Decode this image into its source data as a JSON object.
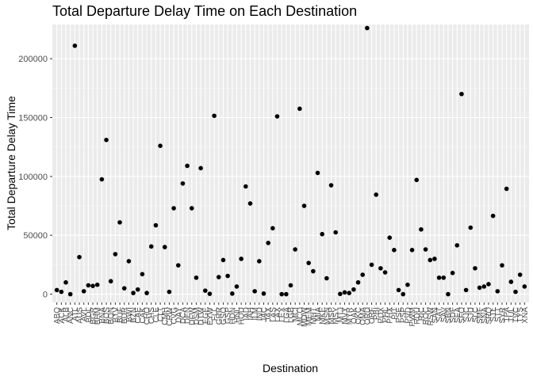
{
  "chart_data": {
    "type": "scatter",
    "title": "Total Departure Delay Time on Each Destination",
    "xlabel": "Destination",
    "ylabel": "Total Departure Delay Time",
    "ylim": [
      -7000,
      229000
    ],
    "yticks": [
      0,
      50000,
      100000,
      150000,
      200000
    ],
    "ytick_labels": [
      "0",
      "50000",
      "100000",
      "150000",
      "200000"
    ],
    "grid": true,
    "point_color": "#000000",
    "panel_color": "#ebebeb",
    "categories": [
      "ABQ",
      "ACK",
      "ALB",
      "ANC",
      "ATL",
      "AUS",
      "AVL",
      "BDL",
      "BGR",
      "BHM",
      "BNA",
      "BOS",
      "BQN",
      "BTV",
      "BUF",
      "BUR",
      "BWI",
      "BZN",
      "CAE",
      "CAK",
      "CHO",
      "CHS",
      "CLE",
      "CLT",
      "CMH",
      "CRW",
      "CVG",
      "DAY",
      "DCA",
      "DEN",
      "DFW",
      "DSM",
      "DTW",
      "EGE",
      "EYW",
      "FLL",
      "GRR",
      "GSO",
      "GSP",
      "HDN",
      "HNL",
      "HOU",
      "IAD",
      "IAH",
      "ILM",
      "IND",
      "JAC",
      "JAX",
      "LAS",
      "LAX",
      "LEX",
      "LGA",
      "LGB",
      "MCI",
      "MCO",
      "MDW",
      "MEM",
      "MHT",
      "MIA",
      "MKE",
      "MSN",
      "MSP",
      "MSY",
      "MTJ",
      "MVY",
      "MYR",
      "OAK",
      "OKC",
      "OMA",
      "ORD",
      "ORF",
      "PBI",
      "PDX",
      "PHL",
      "PHX",
      "PIT",
      "PSE",
      "PSP",
      "PVD",
      "PWM",
      "RDU",
      "RIC",
      "ROC",
      "RSW",
      "SAN",
      "SAT",
      "SAV",
      "SBN",
      "SDF",
      "SEA",
      "SFO",
      "SJC",
      "SJU",
      "SLC",
      "SMF",
      "SNA",
      "SRQ",
      "STL",
      "STT",
      "SYR",
      "TPA",
      "TUL",
      "TVC",
      "TYS",
      "XNA"
    ],
    "values": [
      3500,
      2000,
      10000,
      0,
      211000,
      31500,
      2500,
      7500,
      7000,
      8000,
      97500,
      131000,
      11000,
      34000,
      61000,
      5000,
      28000,
      1000,
      4000,
      17000,
      1000,
      40500,
      58500,
      126000,
      40000,
      2000,
      73000,
      24500,
      94000,
      109000,
      73000,
      14000,
      107000,
      3000,
      300,
      151500,
      14500,
      29000,
      15500,
      500,
      6500,
      30000,
      91500,
      77000,
      2500,
      28000,
      500,
      43500,
      56000,
      151000,
      0,
      0,
      7500,
      38000,
      157500,
      75000,
      26500,
      19500,
      103000,
      51000,
      13500,
      92500,
      52500,
      200,
      1500,
      1000,
      4000,
      10000,
      16500,
      226000,
      25000,
      84500,
      22000,
      18500,
      48000,
      37500,
      3500,
      0,
      8000,
      37500,
      97000,
      55000,
      38000,
      29000,
      30000,
      14000,
      14000,
      0,
      18000,
      41500,
      170000,
      3500,
      56500,
      22000,
      5500,
      6500,
      8500,
      66500,
      2500,
      24500,
      89500,
      10500,
      2000,
      16500,
      6500
    ]
  }
}
